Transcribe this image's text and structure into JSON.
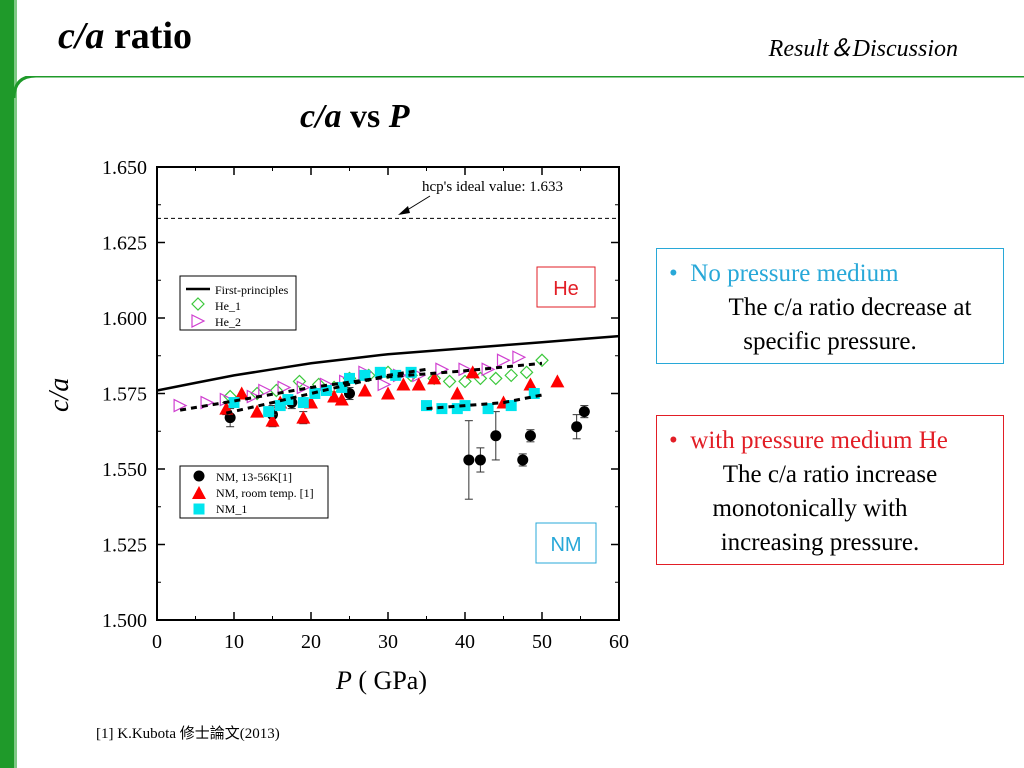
{
  "header": {
    "title_var": "c/a",
    "title_rest": " ratio",
    "section": "Result＆Discussion"
  },
  "plot": {
    "title_var1": "c/a",
    "title_mid": " vs ",
    "title_var2": "P"
  },
  "colors": {
    "green": "#1f9a2a",
    "blue_box": "#28a8d8",
    "red_box": "#e21e26",
    "he_label": "#e21e26",
    "nm_label": "#28a8d8",
    "he1": "#3cc83c",
    "he2": "#d040d0",
    "nm_13_56k": "#000000",
    "nm_room": "#ff0000",
    "nm_1": "#00e5ee"
  },
  "boxes": {
    "no_medium_bullet": "•",
    "no_medium_title": "No pressure medium",
    "no_medium_text1": "The c/a ratio decrease at",
    "no_medium_text2": "specific pressure.",
    "with_medium_bullet": "•",
    "with_medium_title": "with pressure medium He",
    "with_medium_text1": "The c/a ratio increase",
    "with_medium_text2": "monotonically with",
    "with_medium_text3": "increasing pressure."
  },
  "reference": "[1]   K.Kubota 修士論文(2013)",
  "chart_data": {
    "type": "scatter",
    "xlabel_var": "P",
    "xlabel_unit": " ( GPa)",
    "ylabel": "c/a",
    "xlim": [
      0,
      60
    ],
    "ylim": [
      1.5,
      1.65
    ],
    "xticks": [
      "0",
      "10",
      "20",
      "30",
      "40",
      "50",
      "60"
    ],
    "yticks": [
      "1.500",
      "1.525",
      "1.550",
      "1.575",
      "1.600",
      "1.625",
      "1.650"
    ],
    "annotation": "hcp's ideal value: 1.633",
    "ideal_value": 1.633,
    "he_label": "He",
    "nm_label": "NM",
    "legend1": [
      "First-principles",
      "He_1",
      "He_2"
    ],
    "legend2": [
      "NM, 13-56K[1]",
      "NM, room temp. [1]",
      "NM_1"
    ],
    "series": [
      {
        "name": "First-principles",
        "kind": "line",
        "x": [
          0,
          5,
          10,
          15,
          20,
          25,
          30,
          35,
          40,
          45,
          50,
          55,
          60
        ],
        "y": [
          1.576,
          1.5785,
          1.581,
          1.583,
          1.585,
          1.5865,
          1.588,
          1.589,
          1.59,
          1.591,
          1.592,
          1.593,
          1.594
        ]
      },
      {
        "name": "He_1",
        "kind": "diamond",
        "x": [
          9.5,
          13,
          15.5,
          18.5,
          21,
          23,
          25,
          27.5,
          30,
          33,
          36,
          38,
          40,
          42,
          44,
          46,
          48,
          50
        ],
        "y": [
          1.574,
          1.575,
          1.576,
          1.579,
          1.578,
          1.577,
          1.58,
          1.581,
          1.582,
          1.581,
          1.58,
          1.579,
          1.579,
          1.58,
          1.58,
          1.581,
          1.582,
          1.586
        ]
      },
      {
        "name": "He_2",
        "kind": "triangle_right",
        "x": [
          3,
          6.5,
          9,
          12.5,
          14,
          16.5,
          19,
          22,
          24.5,
          27,
          29.5,
          31.5,
          34,
          37,
          40,
          43,
          45,
          47
        ],
        "y": [
          1.571,
          1.572,
          1.573,
          1.574,
          1.576,
          1.577,
          1.577,
          1.578,
          1.579,
          1.582,
          1.578,
          1.581,
          1.581,
          1.583,
          1.583,
          1.583,
          1.586,
          1.587
        ]
      },
      {
        "name": "NM, 13-56K[1]",
        "kind": "circle",
        "x": [
          9.5,
          15,
          17.5,
          25,
          40.5,
          42,
          44,
          47.5,
          48.5,
          54.5,
          55.5
        ],
        "y": [
          1.567,
          1.568,
          1.572,
          1.575,
          1.553,
          1.553,
          1.561,
          1.553,
          1.561,
          1.564,
          1.569
        ],
        "yerr": [
          0.003,
          0.003,
          0.002,
          0.002,
          0.013,
          0.004,
          0.008,
          0.002,
          0.002,
          0.004,
          0.002
        ]
      },
      {
        "name": "NM, room temp. [1]",
        "kind": "triangle_up",
        "x": [
          9,
          11,
          13,
          15,
          16,
          19,
          20,
          23,
          24,
          27,
          30,
          32,
          34,
          36,
          39,
          41,
          45,
          48.5,
          52
        ],
        "y": [
          1.57,
          1.575,
          1.569,
          1.566,
          1.572,
          1.567,
          1.572,
          1.574,
          1.573,
          1.576,
          1.575,
          1.578,
          1.578,
          1.58,
          1.575,
          1.582,
          1.572,
          1.578,
          1.579
        ],
        "yerr": [
          0.002,
          0,
          0,
          0.002,
          0,
          0.002,
          0,
          0,
          0,
          0,
          0,
          0,
          0,
          0,
          0,
          0,
          0,
          0,
          0
        ]
      },
      {
        "name": "NM_1",
        "kind": "square",
        "x": [
          10,
          14.5,
          16,
          17,
          19,
          20.5,
          22,
          24,
          25,
          27,
          29,
          31,
          33,
          35,
          37,
          39,
          40,
          43,
          46,
          49
        ],
        "y": [
          1.572,
          1.569,
          1.571,
          1.573,
          1.572,
          1.575,
          1.576,
          1.577,
          1.58,
          1.581,
          1.582,
          1.581,
          1.582,
          1.571,
          1.57,
          1.57,
          1.571,
          1.57,
          1.571,
          1.575
        ]
      }
    ],
    "fits": [
      {
        "name": "He fit",
        "x": [
          3,
          10,
          20,
          30,
          40,
          50
        ],
        "y": [
          1.5695,
          1.5725,
          1.577,
          1.5805,
          1.5825,
          1.585
        ]
      },
      {
        "name": "NM fit",
        "x": [
          9,
          15,
          20,
          25,
          30,
          35
        ],
        "y": [
          1.5685,
          1.572,
          1.575,
          1.578,
          1.581,
          1.583
        ]
      },
      {
        "name": "NM fit 2",
        "x": [
          35,
          40,
          45,
          50
        ],
        "y": [
          1.57,
          1.571,
          1.572,
          1.5745
        ]
      }
    ]
  }
}
